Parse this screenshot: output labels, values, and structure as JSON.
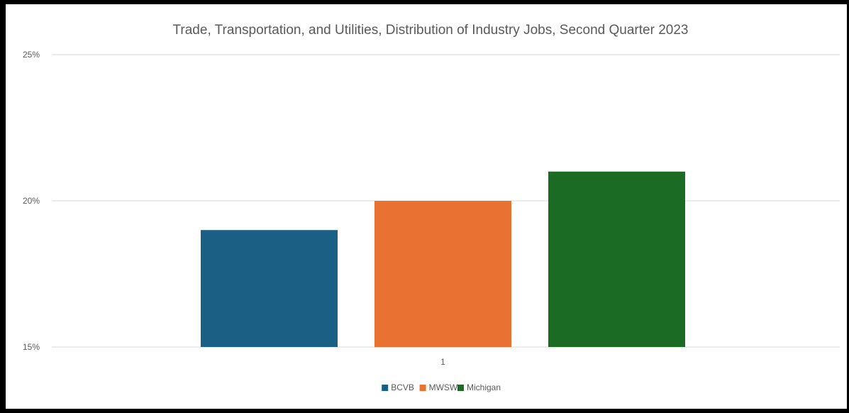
{
  "chart_data": {
    "type": "bar",
    "title": "Trade, Transportation, and Utilities, Distribution of Industry Jobs, Second Quarter 2023",
    "xlabel": "",
    "ylabel": "",
    "categories": [
      "1"
    ],
    "series": [
      {
        "name": "BCVB",
        "values": [
          19
        ],
        "color": "#1a5f84"
      },
      {
        "name": "MWSW",
        "values": [
          20
        ],
        "color": "#e97132"
      },
      {
        "name": "Michigan",
        "values": [
          21
        ],
        "color": "#1b6b25"
      }
    ],
    "ylim": [
      15,
      25
    ],
    "y_ticks": [
      {
        "value": 15,
        "label": "15%"
      },
      {
        "value": 20,
        "label": "20%"
      },
      {
        "value": 25,
        "label": "25%"
      }
    ],
    "grid": true,
    "legend_position": "bottom"
  }
}
